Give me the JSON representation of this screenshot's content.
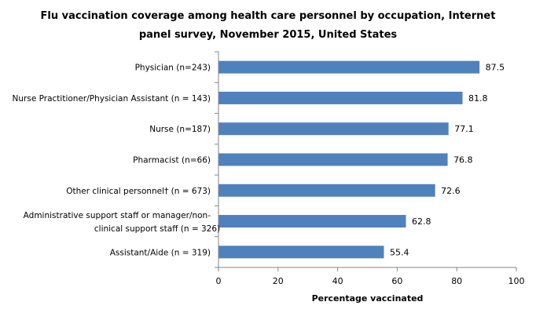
{
  "chart_data": {
    "type": "bar",
    "orientation": "horizontal",
    "title_lines": [
      "Flu vaccination coverage among health care personnel by occupation, Internet",
      "panel survey, November 2015, United States"
    ],
    "categories": [
      [
        "Physician (n=243)"
      ],
      [
        "Nurse Practitioner/Physician Assistant (n = 143)"
      ],
      [
        "Nurse (n=187)"
      ],
      [
        "Pharmacist (n=66)"
      ],
      [
        "Other clinical personnel† (n = 673)"
      ],
      [
        "Administrative support staff or manager/non-",
        "clinical support staff (n = 326)"
      ],
      [
        "Assistant/Aide (n = 319)"
      ]
    ],
    "values": [
      87.5,
      81.8,
      77.1,
      76.8,
      72.6,
      62.8,
      55.4
    ],
    "data_labels": [
      "87.5",
      "81.8",
      "77.1",
      "76.8",
      "72.6",
      "62.8",
      "55.4"
    ],
    "xlabel": "Percentage vaccinated",
    "ylabel": "",
    "xlim": [
      0,
      100
    ],
    "xticks": [
      0,
      20,
      40,
      60,
      80,
      100
    ],
    "grid": false,
    "legend": "none",
    "bar_color": "#4F81BD",
    "axis_color": "#868686"
  }
}
